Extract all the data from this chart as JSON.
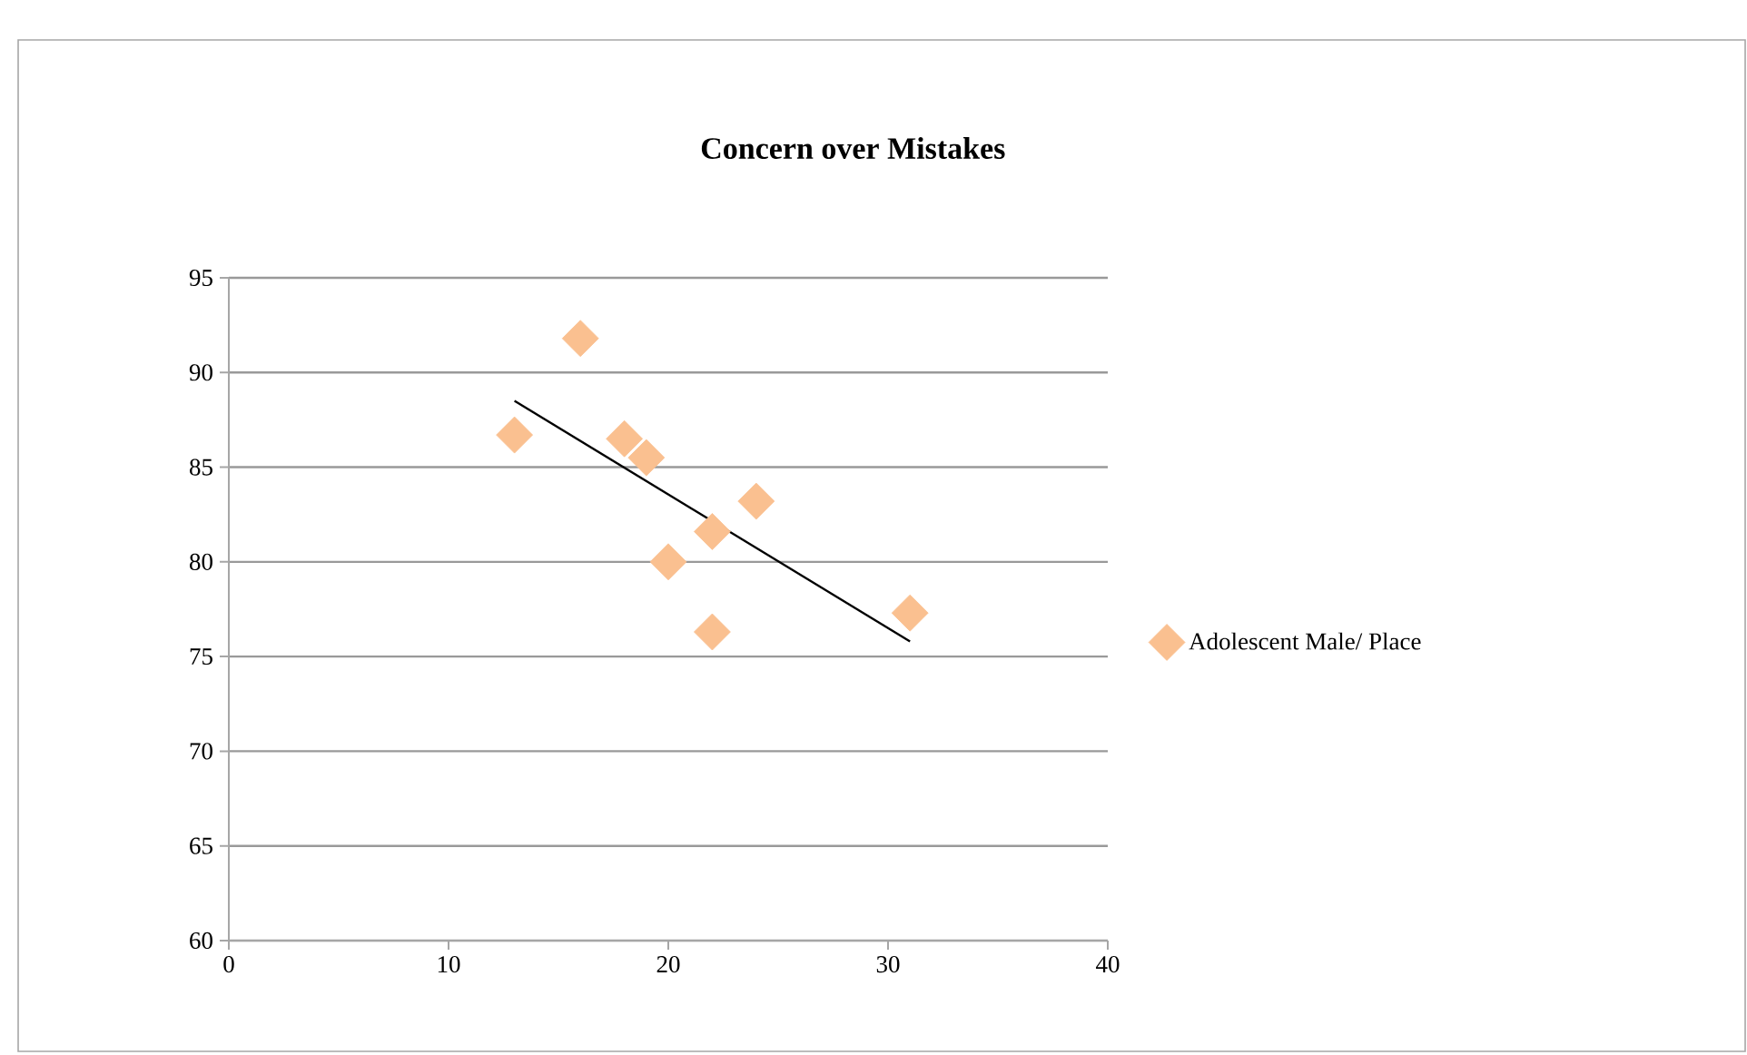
{
  "chart_data": {
    "type": "scatter",
    "title": "Concern over Mistakes",
    "xlim": [
      0,
      40
    ],
    "xticks": [
      0,
      10,
      20,
      30,
      40
    ],
    "ylim": [
      60,
      95
    ],
    "yticks": [
      60,
      65,
      70,
      75,
      80,
      85,
      90,
      95
    ],
    "grid": "y",
    "legend": "right",
    "marker": "diamond",
    "series": [
      {
        "name": "Adolescent Male/ Place",
        "color": "#fac090",
        "x": [
          13,
          16,
          18,
          19,
          20,
          22,
          22,
          24,
          31
        ],
        "values": [
          86.7,
          91.8,
          86.5,
          85.5,
          80.0,
          81.6,
          76.3,
          83.2,
          77.3
        ]
      },
      {
        "type": "line",
        "marker": "none",
        "color": "#000000",
        "x": [
          13,
          31
        ],
        "values": [
          88.5,
          75.8
        ]
      }
    ]
  }
}
